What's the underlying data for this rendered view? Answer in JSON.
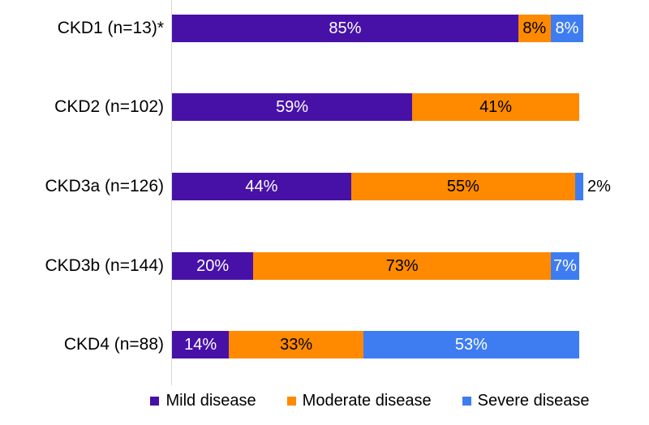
{
  "chart_data": {
    "type": "bar",
    "orientation": "horizontal-stacked",
    "title": "",
    "xlabel": "",
    "ylabel": "",
    "xlim": [
      0,
      101
    ],
    "grid": false,
    "axis_color": "#d9d9d9",
    "background_color": "#ffffff",
    "legend_position": "bottom",
    "inside_label_min": 4,
    "categories": [
      "CKD1 (n=13)*",
      "CKD2 (n=102)",
      "CKD3a (n=126)",
      "CKD3b (n=144)",
      "CKD4 (n=88)"
    ],
    "series": [
      {
        "key": "mild",
        "name": "Mild disease",
        "color": "#4711a8",
        "label_color": "#ffffff",
        "values": [
          85,
          59,
          44,
          20,
          14
        ],
        "labels": [
          "85%",
          "59%",
          "44%",
          "20%",
          "14%"
        ]
      },
      {
        "key": "moderate",
        "name": "Moderate disease",
        "color": "#ff8a00",
        "label_color": "#000000",
        "values": [
          8,
          41,
          55,
          73,
          33
        ],
        "labels": [
          "8%",
          "41%",
          "55%",
          "73%",
          "33%"
        ]
      },
      {
        "key": "severe",
        "name": "Severe disease",
        "color": "#3e7df1",
        "label_color": "#ffffff",
        "values": [
          8,
          0,
          2,
          7,
          53
        ],
        "labels": [
          "8%",
          "",
          "2%",
          "7%",
          "53%"
        ]
      }
    ]
  }
}
